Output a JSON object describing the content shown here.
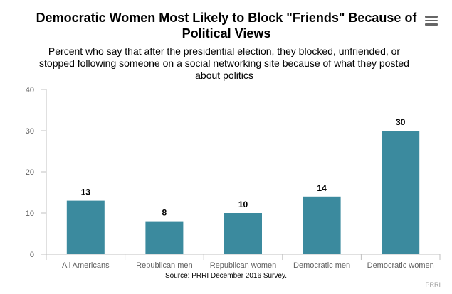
{
  "title": "Democratic Women Most Likely to Block \"Friends\" Because of Political Views",
  "subtitle": "Percent who say that after the presidential election, they blocked, unfriended, or stopped following someone on a social networking site because of what they posted about politics",
  "source": "Source: PRRI December 2016 Survey.",
  "credit": "PRRI",
  "menu_icon": "hamburger-menu-icon",
  "colors": {
    "bar": "#3b8a9e",
    "grid": "#d8d8d8",
    "axis": "#c0c0c0",
    "label": "#606060"
  },
  "chart_data": {
    "type": "bar",
    "categories": [
      "All Americans",
      "Republican men",
      "Republican women",
      "Democratic men",
      "Democratic women"
    ],
    "values": [
      13,
      8,
      10,
      14,
      30
    ],
    "ylim": [
      0,
      40
    ],
    "yticks": [
      0,
      10,
      20,
      30,
      40
    ],
    "data_labels": [
      "13",
      "8",
      "10",
      "14",
      "30"
    ],
    "grid": false,
    "legend": "none"
  }
}
